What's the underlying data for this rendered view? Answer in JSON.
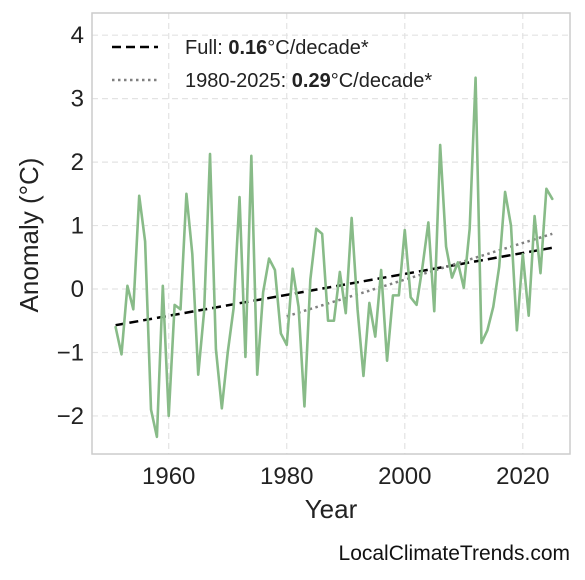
{
  "chart_data": {
    "type": "line",
    "title": "",
    "xlabel": "Year",
    "ylabel": "Anomaly (°C)",
    "xlim": [
      1947,
      2028
    ],
    "ylim": [
      -2.6,
      4.35
    ],
    "xticks": [
      1960,
      1980,
      2000,
      2020
    ],
    "xtick_labels": [
      "1960",
      "1980",
      "2000",
      "2020"
    ],
    "yticks": [
      -2,
      -1,
      0,
      1,
      2,
      3,
      4
    ],
    "ytick_labels": [
      "−2",
      "−1",
      "0",
      "1",
      "2",
      "3",
      "4"
    ],
    "grid": true,
    "legend_position": "top-left",
    "series": [
      {
        "kind": "anomaly",
        "color": "#88bb88",
        "x": [
          1951,
          1952,
          1953,
          1954,
          1955,
          1956,
          1957,
          1958,
          1959,
          1960,
          1961,
          1962,
          1963,
          1964,
          1965,
          1966,
          1967,
          1968,
          1969,
          1970,
          1971,
          1972,
          1973,
          1974,
          1975,
          1976,
          1977,
          1978,
          1979,
          1980,
          1981,
          1982,
          1983,
          1984,
          1985,
          1986,
          1987,
          1988,
          1989,
          1990,
          1991,
          1992,
          1993,
          1994,
          1995,
          1996,
          1997,
          1998,
          1999,
          2000,
          2001,
          2002,
          2003,
          2004,
          2005,
          2006,
          2007,
          2008,
          2009,
          2010,
          2011,
          2012,
          2013,
          2014,
          2015,
          2016,
          2017,
          2018,
          2019,
          2020,
          2021,
          2022,
          2023,
          2024,
          2025
        ],
        "y": [
          -0.6,
          -1.03,
          0.05,
          -0.32,
          1.47,
          0.75,
          -1.9,
          -2.33,
          0.05,
          -2.0,
          -0.25,
          -0.32,
          1.5,
          0.55,
          -1.35,
          -0.35,
          2.13,
          -0.95,
          -1.88,
          -1.0,
          -0.3,
          1.45,
          -1.07,
          2.1,
          -1.35,
          -0.05,
          0.48,
          0.3,
          -0.7,
          -0.88,
          0.32,
          -0.28,
          -1.85,
          0.15,
          0.95,
          0.87,
          -0.5,
          -0.5,
          0.27,
          -0.38,
          1.12,
          -0.32,
          -1.37,
          -0.22,
          -0.75,
          0.3,
          -1.13,
          -0.1,
          -0.1,
          0.93,
          -0.13,
          -0.25,
          0.35,
          1.05,
          -0.35,
          2.27,
          0.67,
          0.18,
          0.42,
          0.02,
          0.95,
          3.33,
          -0.85,
          -0.65,
          -0.28,
          0.35,
          1.53,
          1.0,
          -0.65,
          0.55,
          -0.42,
          1.15,
          0.25,
          1.58,
          1.42
        ]
      },
      {
        "kind": "trend",
        "style": "dashed",
        "color": "#000000",
        "legend_prefix": "Full: ",
        "legend_value": "0.16",
        "legend_suffix": "°C/decade*",
        "x": [
          1951,
          2025
        ],
        "y": [
          -0.57,
          0.65
        ]
      },
      {
        "kind": "trend",
        "style": "dotted",
        "color": "#808080",
        "legend_prefix": "1980-2025: ",
        "legend_value": "0.29",
        "legend_suffix": "°C/decade*",
        "x": [
          1980,
          2025
        ],
        "y": [
          -0.43,
          0.87
        ]
      }
    ]
  },
  "watermark": "LocalClimateTrends.com"
}
